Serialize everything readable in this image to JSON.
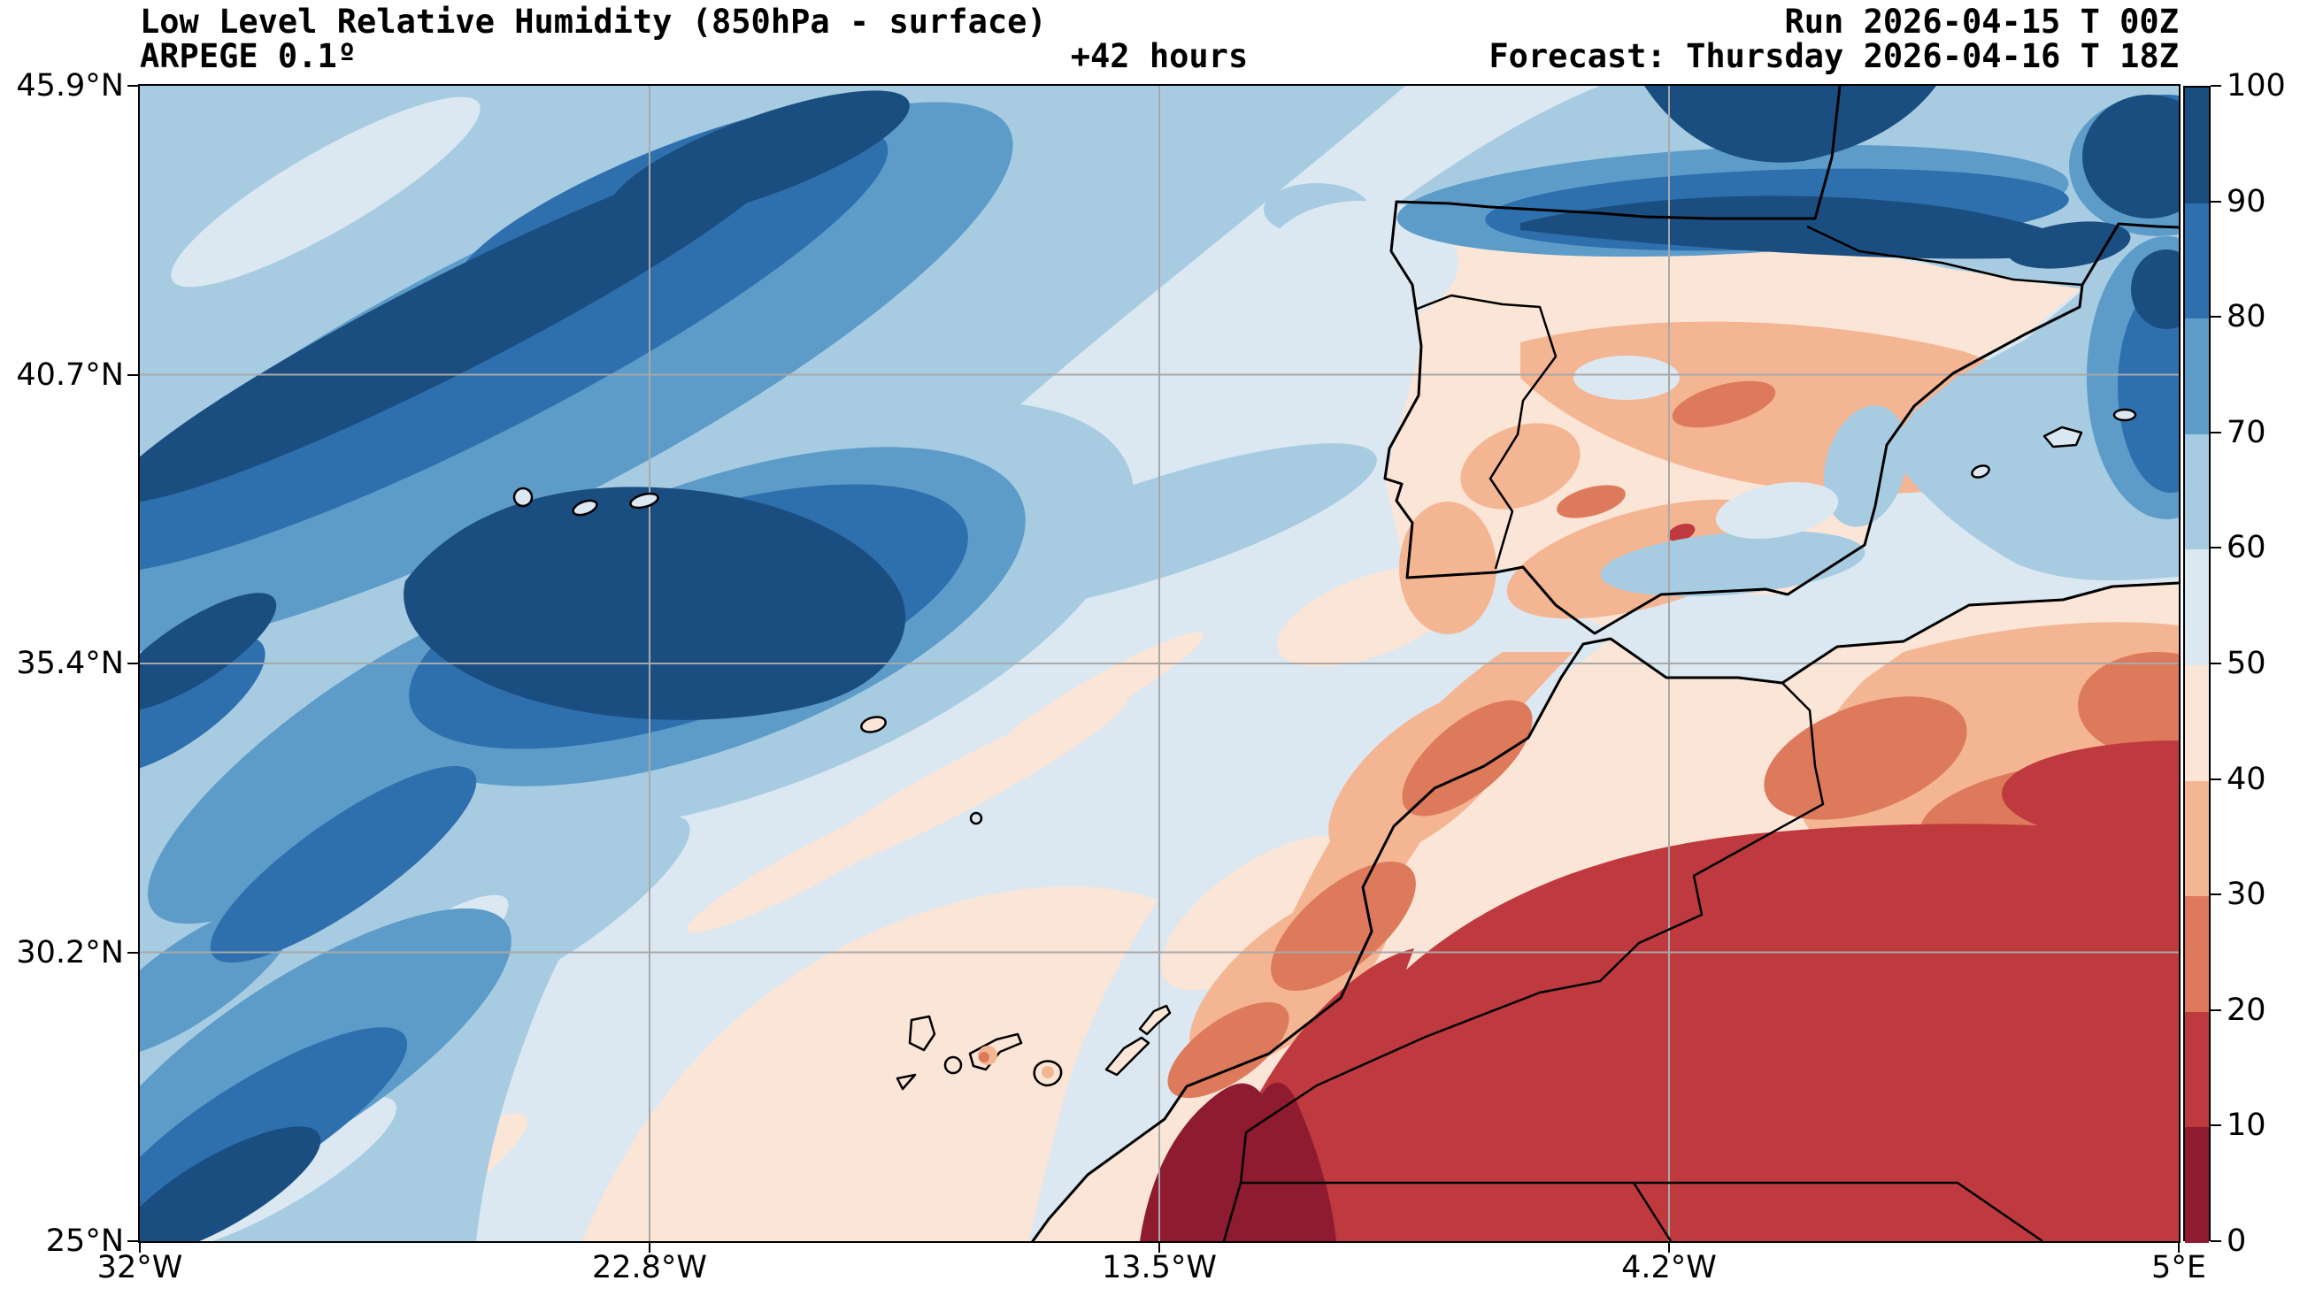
{
  "header": {
    "title": "Low Level Relative Humidity (850hPa - surface)",
    "model": "ARPEGE 0.1º",
    "lead_time": "+42 hours",
    "run": "Run 2026-04-15 T 00Z",
    "forecast": "Forecast: Thursday 2026-04-16 T 18Z"
  },
  "axes": {
    "lat_ticks": [
      "45.9°N",
      "40.7°N",
      "35.4°N",
      "30.2°N",
      "25°N"
    ],
    "lon_ticks": [
      "32°W",
      "22.8°W",
      "13.5°W",
      "4.2°W",
      "5°E"
    ]
  },
  "colorbar": {
    "tick_labels": [
      "100",
      "90",
      "80",
      "70",
      "60",
      "50",
      "40",
      "30",
      "20",
      "10",
      "0"
    ],
    "levels": [
      {
        "from": 90,
        "to": 100,
        "color": "#1b4e80"
      },
      {
        "from": 80,
        "to": 90,
        "color": "#2e6fad"
      },
      {
        "from": 70,
        "to": 80,
        "color": "#5d9cc9"
      },
      {
        "from": 60,
        "to": 70,
        "color": "#a7cce2"
      },
      {
        "from": 50,
        "to": 60,
        "color": "#dce8f1"
      },
      {
        "from": 40,
        "to": 50,
        "color": "#fbe5d6"
      },
      {
        "from": 30,
        "to": 40,
        "color": "#f4b593"
      },
      {
        "from": 20,
        "to": 30,
        "color": "#dd7a5c"
      },
      {
        "from": 10,
        "to": 20,
        "color": "#bf3a3f"
      },
      {
        "from": 0,
        "to": 10,
        "color": "#8e1b30"
      }
    ]
  }
}
